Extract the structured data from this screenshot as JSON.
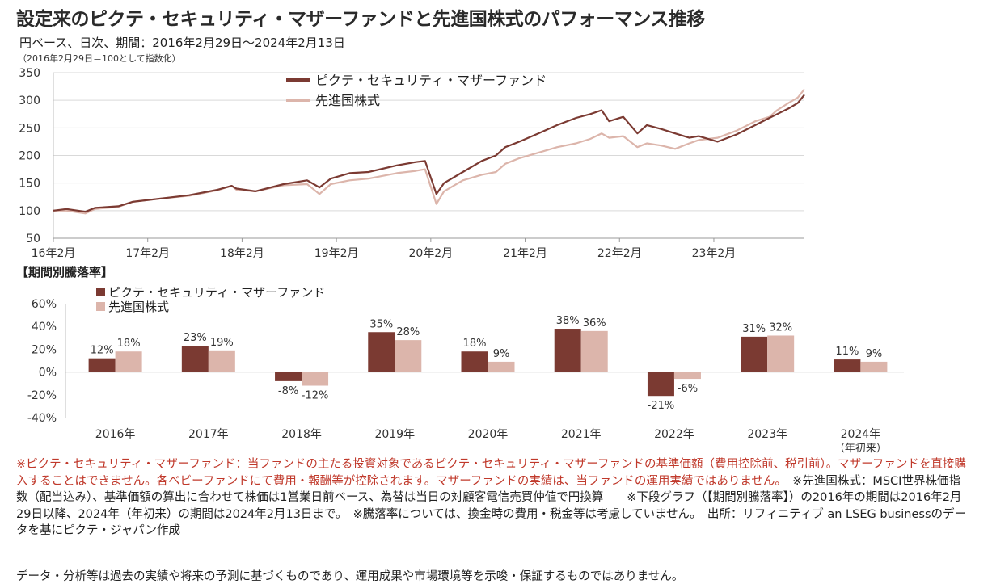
{
  "header": {
    "title": "設定来のピクテ・セキュリティ・マザーファンドと先進国株式のパフォーマンス推移",
    "subtitle": "円ベース、日次、期間：2016年2月29日～2024年2月13日",
    "index_note": "（2016年2月29日＝100として指数化）"
  },
  "colors": {
    "fund": "#7b3a32",
    "benchmark": "#dcb5ab"
  },
  "chart_data": [
    {
      "type": "line",
      "ylim": [
        50,
        350
      ],
      "yticks": [
        50,
        100,
        150,
        200,
        250,
        300,
        350
      ],
      "x_tick_labels": [
        "16年2月",
        "17年2月",
        "18年2月",
        "19年2月",
        "20年2月",
        "21年2月",
        "22年2月",
        "23年2月"
      ],
      "x_tick_positions": [
        2016.16,
        2017.16,
        2018.16,
        2019.16,
        2020.16,
        2021.16,
        2022.16,
        2023.16
      ],
      "xlim": [
        2016.16,
        2024.12
      ],
      "grid": "horizontal",
      "legend": "top-center",
      "series": [
        {
          "name": "ピクテ・セキュリティ・マザーファンド",
          "x": [
            2016.16,
            2016.3,
            2016.5,
            2016.6,
            2016.85,
            2017.0,
            2017.3,
            2017.6,
            2017.9,
            2018.05,
            2018.1,
            2018.3,
            2018.6,
            2018.85,
            2018.98,
            2019.1,
            2019.3,
            2019.5,
            2019.8,
            2020.0,
            2020.1,
            2020.22,
            2020.3,
            2020.5,
            2020.7,
            2020.85,
            2020.95,
            2021.1,
            2021.3,
            2021.5,
            2021.7,
            2021.85,
            2021.97,
            2022.05,
            2022.2,
            2022.35,
            2022.45,
            2022.6,
            2022.75,
            2022.9,
            2023.0,
            2023.2,
            2023.4,
            2023.6,
            2023.75,
            2023.83,
            2023.95,
            2024.05,
            2024.12
          ],
          "y": [
            100,
            103,
            98,
            105,
            108,
            116,
            122,
            128,
            138,
            145,
            140,
            135,
            148,
            155,
            142,
            158,
            168,
            170,
            182,
            188,
            190,
            130,
            150,
            170,
            190,
            200,
            215,
            225,
            240,
            255,
            268,
            275,
            282,
            262,
            270,
            240,
            255,
            248,
            240,
            232,
            235,
            225,
            238,
            255,
            268,
            275,
            285,
            295,
            310
          ]
        },
        {
          "name": "先進国株式",
          "x": [
            2016.16,
            2016.3,
            2016.5,
            2016.6,
            2016.85,
            2017.0,
            2017.3,
            2017.6,
            2017.9,
            2018.05,
            2018.1,
            2018.3,
            2018.6,
            2018.85,
            2018.98,
            2019.1,
            2019.3,
            2019.5,
            2019.8,
            2020.0,
            2020.1,
            2020.22,
            2020.3,
            2020.5,
            2020.7,
            2020.85,
            2020.95,
            2021.1,
            2021.3,
            2021.5,
            2021.7,
            2021.85,
            2021.97,
            2022.05,
            2022.2,
            2022.35,
            2022.45,
            2022.6,
            2022.75,
            2022.9,
            2023.0,
            2023.2,
            2023.4,
            2023.6,
            2023.75,
            2023.83,
            2023.95,
            2024.05,
            2024.12
          ],
          "y": [
            100,
            100,
            95,
            103,
            107,
            116,
            122,
            127,
            137,
            145,
            138,
            135,
            146,
            148,
            130,
            148,
            155,
            158,
            168,
            172,
            175,
            112,
            135,
            155,
            165,
            170,
            185,
            195,
            205,
            215,
            222,
            230,
            240,
            232,
            235,
            215,
            222,
            218,
            212,
            222,
            228,
            232,
            245,
            262,
            270,
            282,
            295,
            305,
            320
          ]
        }
      ]
    },
    {
      "type": "bar",
      "title": "【期間別騰落率】",
      "categories": [
        "2016年",
        "2017年",
        "2018年",
        "2019年",
        "2020年",
        "2021年",
        "2022年",
        "2023年",
        "2024年"
      ],
      "category_note": "（年初来）",
      "ylim": [
        -40,
        60
      ],
      "yticks": [
        -40,
        -20,
        0,
        20,
        40,
        60
      ],
      "ytick_labels": [
        "-40%",
        "-20%",
        "0%",
        "20%",
        "40%",
        "60%"
      ],
      "legend": "top-left",
      "series": [
        {
          "name": "ピクテ・セキュリティ・マザーファンド",
          "values": [
            12,
            23,
            -8,
            35,
            18,
            38,
            -21,
            31,
            11
          ],
          "labels": [
            "12%",
            "23%",
            "-8%",
            "35%",
            "18%",
            "38%",
            "-21%",
            "31%",
            "11%"
          ]
        },
        {
          "name": "先進国株式",
          "values": [
            18,
            19,
            -12,
            28,
            9,
            36,
            -6,
            32,
            9
          ],
          "labels": [
            "18%",
            "19%",
            "-12%",
            "28%",
            "9%",
            "36%",
            "-6%",
            "32%",
            "9%"
          ]
        }
      ]
    }
  ],
  "notes": {
    "red_note": "※ピクテ・セキュリティ・マザーファンド：当ファンドの主たる投資対象であるピクテ・セキュリティ・マザーファンドの基準価額（費用控除前、税引前）。マザーファンドを直接購入することはできません。各ベビーファンドにて費用・報酬等が控除されます。マザーファンドの実績は、当ファンドの運用実績ではありません。",
    "black_note": "　※先進国株式：MSCI世界株価指数（配当込み）、基準価額の算出に合わせて株価は1営業日前ベース、為替は当日の対顧客電信売買仲値で円換算　　※下段グラフ（【期間別騰落率】）の2016年の期間は2016年2月29日以降、2024年（年初来）の期間は2024年2月13日まで。　※騰落率については、換金時の費用・税金等は考慮していません。　出所：リフィニティブ an LSEG businessのデータを基にピクテ・ジャパン作成",
    "disclaimer": "データ・分析等は過去の実績や将来の予測に基づくものであり、運用成果や市場環境等を示唆・保証するものではありません。"
  }
}
